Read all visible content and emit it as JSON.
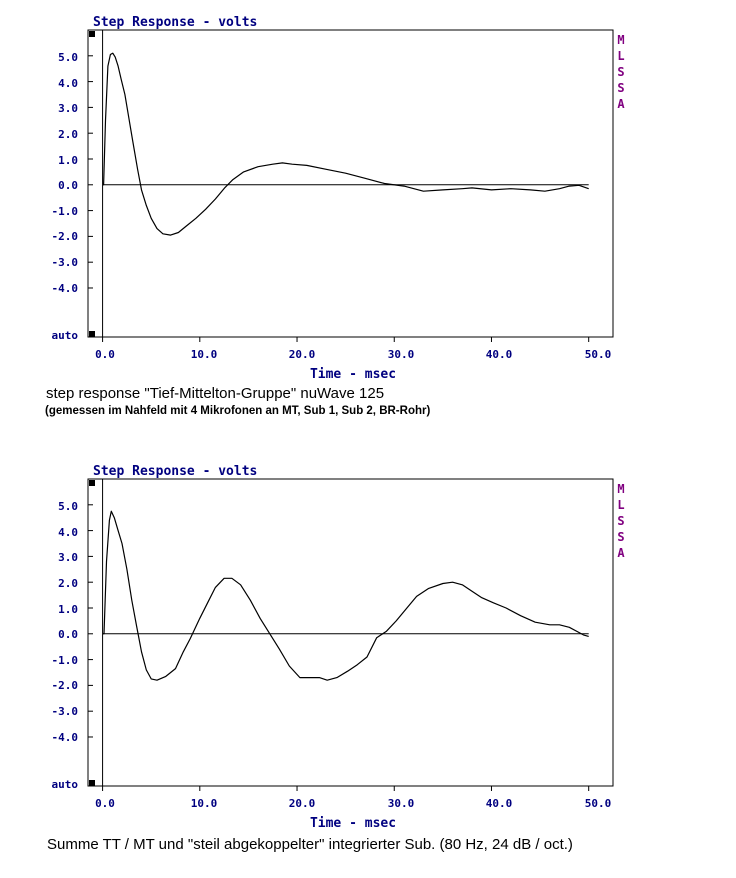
{
  "colors": {
    "axis_text": "#000080",
    "brand": "#800080",
    "curve": "#000000",
    "frame": "#000000"
  },
  "charts": [
    {
      "title": "Step Response - volts",
      "xlabel": "Time - msec",
      "brand_letters": [
        "M",
        "L",
        "S",
        "S",
        "A"
      ],
      "y_tick_labels": [
        "5.0",
        "4.0",
        "3.0",
        "2.0",
        "1.0",
        "0.0",
        "-1.0",
        "-2.0",
        "-3.0",
        "-4.0",
        "auto"
      ],
      "x_tick_labels": [
        "0.0",
        "10.0",
        "20.0",
        "30.0",
        "40.0",
        "50.0"
      ],
      "caption": "step response \"Tief-Mittelton-Gruppe\" nuWave 125",
      "subcaption": "(gemessen im Nahfeld mit 4 Mikrofonen an MT, Sub 1, Sub 2, BR-Rohr)"
    },
    {
      "title": "Step Response - volts",
      "xlabel": "Time - msec",
      "brand_letters": [
        "M",
        "L",
        "S",
        "S",
        "A"
      ],
      "y_tick_labels": [
        "5.0",
        "4.0",
        "3.0",
        "2.0",
        "1.0",
        "0.0",
        "-1.0",
        "-2.0",
        "-3.0",
        "-4.0",
        "auto"
      ],
      "x_tick_labels": [
        "0.0",
        "10.0",
        "20.0",
        "30.0",
        "40.0",
        "50.0"
      ],
      "caption": "Summe TT / MT und \"steil abgekoppelter\" integrierter Sub. (80 Hz, 24 dB / oct.)",
      "subcaption": ""
    }
  ],
  "chart_data": [
    {
      "type": "line",
      "title": "Step Response - volts",
      "xlabel": "Time - msec",
      "ylabel": "",
      "xlim": [
        -1.5,
        52.5
      ],
      "ylim": [
        -5.9,
        6.0
      ],
      "x_ticks": [
        0,
        10,
        20,
        30,
        40,
        50
      ],
      "y_ticks": [
        5,
        4,
        3,
        2,
        1,
        0,
        -1,
        -2,
        -3,
        -4
      ],
      "zero_line": {
        "from": 0,
        "to": 50
      },
      "series": [
        {
          "points": [
            [
              0,
              0
            ],
            [
              0.1,
              0
            ],
            [
              0.3,
              2.5
            ],
            [
              0.55,
              4.6
            ],
            [
              0.8,
              5.05
            ],
            [
              1.05,
              5.1
            ],
            [
              1.3,
              4.95
            ],
            [
              1.6,
              4.6
            ],
            [
              1.9,
              4.1
            ],
            [
              2.3,
              3.5
            ],
            [
              2.7,
              2.6
            ],
            [
              3.1,
              1.7
            ],
            [
              3.6,
              0.6
            ],
            [
              4.0,
              -0.2
            ],
            [
              4.5,
              -0.8
            ],
            [
              5.0,
              -1.3
            ],
            [
              5.6,
              -1.7
            ],
            [
              6.2,
              -1.9
            ],
            [
              7.0,
              -1.95
            ],
            [
              7.8,
              -1.85
            ],
            [
              8.6,
              -1.6
            ],
            [
              9.6,
              -1.3
            ],
            [
              10.6,
              -0.95
            ],
            [
              11.6,
              -0.55
            ],
            [
              12.6,
              -0.1
            ],
            [
              13.4,
              0.2
            ],
            [
              14.5,
              0.5
            ],
            [
              16.0,
              0.7
            ],
            [
              17.5,
              0.8
            ],
            [
              18.5,
              0.85
            ],
            [
              19.5,
              0.8
            ],
            [
              21.0,
              0.75
            ],
            [
              23.0,
              0.6
            ],
            [
              25.0,
              0.45
            ],
            [
              27.0,
              0.25
            ],
            [
              29.0,
              0.05
            ],
            [
              31.0,
              -0.05
            ],
            [
              33.0,
              -0.25
            ],
            [
              35.0,
              -0.2
            ],
            [
              37.0,
              -0.15
            ],
            [
              38.0,
              -0.12
            ],
            [
              40.0,
              -0.2
            ],
            [
              42.0,
              -0.15
            ],
            [
              44.0,
              -0.2
            ],
            [
              45.5,
              -0.25
            ],
            [
              47.0,
              -0.15
            ],
            [
              48.0,
              -0.05
            ],
            [
              49.0,
              -0.02
            ],
            [
              50.0,
              -0.15
            ]
          ]
        }
      ]
    },
    {
      "type": "line",
      "title": "Step Response - volts",
      "xlabel": "Time - msec",
      "ylabel": "",
      "xlim": [
        -1.5,
        52.5
      ],
      "ylim": [
        -5.9,
        6.0
      ],
      "x_ticks": [
        0,
        10,
        20,
        30,
        40,
        50
      ],
      "y_ticks": [
        5,
        4,
        3,
        2,
        1,
        0,
        -1,
        -2,
        -3,
        -4
      ],
      "zero_line": {
        "from": 0,
        "to": 50
      },
      "series": [
        {
          "points": [
            [
              0,
              0
            ],
            [
              0.15,
              0
            ],
            [
              0.4,
              2.8
            ],
            [
              0.7,
              4.4
            ],
            [
              0.9,
              4.75
            ],
            [
              1.2,
              4.5
            ],
            [
              1.6,
              4.0
            ],
            [
              2.0,
              3.5
            ],
            [
              2.5,
              2.5
            ],
            [
              3.0,
              1.3
            ],
            [
              3.5,
              0.3
            ],
            [
              4.0,
              -0.7
            ],
            [
              4.5,
              -1.4
            ],
            [
              5.0,
              -1.75
            ],
            [
              5.6,
              -1.8
            ],
            [
              6.5,
              -1.65
            ],
            [
              7.5,
              -1.35
            ],
            [
              8.3,
              -0.7
            ],
            [
              9.0,
              -0.2
            ],
            [
              10.0,
              0.6
            ],
            [
              10.8,
              1.2
            ],
            [
              11.6,
              1.8
            ],
            [
              12.5,
              2.15
            ],
            [
              13.3,
              2.15
            ],
            [
              14.2,
              1.9
            ],
            [
              15.2,
              1.3
            ],
            [
              16.2,
              0.6
            ],
            [
              17.2,
              0.0
            ],
            [
              18.2,
              -0.6
            ],
            [
              19.2,
              -1.25
            ],
            [
              20.3,
              -1.7
            ],
            [
              21.3,
              -1.7
            ],
            [
              22.3,
              -1.7
            ],
            [
              23.1,
              -1.8
            ],
            [
              24.1,
              -1.7
            ],
            [
              25.2,
              -1.45
            ],
            [
              26.2,
              -1.2
            ],
            [
              27.2,
              -0.9
            ],
            [
              28.2,
              -0.15
            ],
            [
              29.2,
              0.1
            ],
            [
              30.2,
              0.5
            ],
            [
              31.3,
              1.0
            ],
            [
              32.3,
              1.45
            ],
            [
              33.5,
              1.75
            ],
            [
              35.0,
              1.95
            ],
            [
              36.0,
              2.0
            ],
            [
              37.0,
              1.9
            ],
            [
              38.0,
              1.65
            ],
            [
              39.0,
              1.4
            ],
            [
              40.2,
              1.2
            ],
            [
              41.5,
              1.0
            ],
            [
              43.0,
              0.7
            ],
            [
              44.5,
              0.45
            ],
            [
              46.0,
              0.35
            ],
            [
              47.0,
              0.35
            ],
            [
              48.0,
              0.25
            ],
            [
              49.0,
              0.05
            ],
            [
              49.5,
              -0.05
            ],
            [
              50.0,
              -0.1
            ]
          ]
        }
      ]
    }
  ]
}
